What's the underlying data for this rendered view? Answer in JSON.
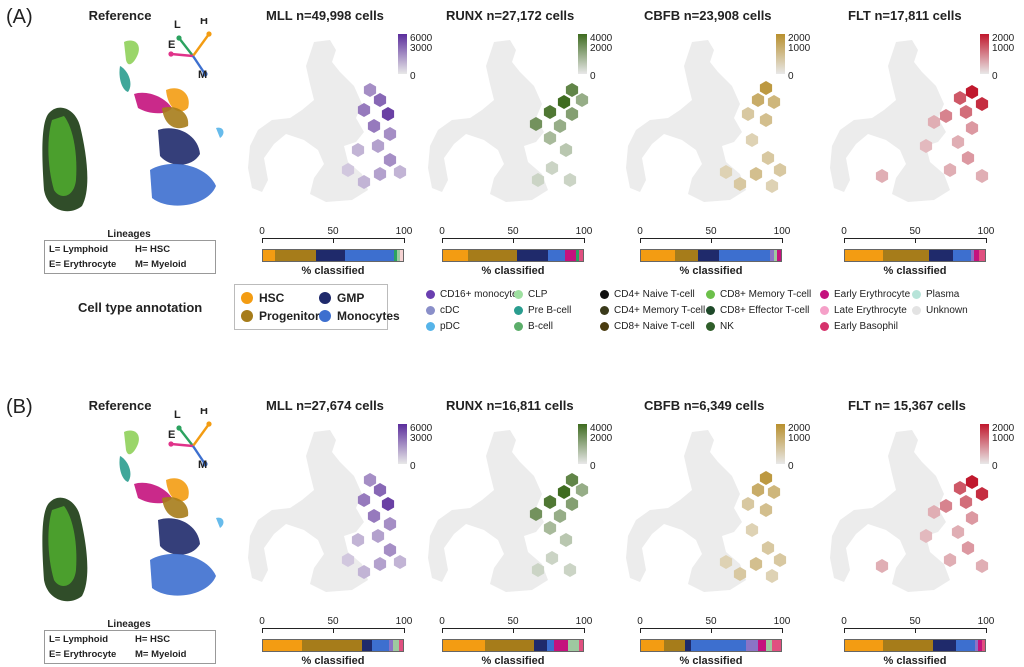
{
  "panels": [
    {
      "label": "(A)",
      "reference_title": "Reference",
      "lineage_title": "Lineages",
      "lineages": [
        "L= Lymphoid",
        "H= HSC",
        "E= Erythrocyte",
        "M= Myeloid"
      ],
      "arrows": [
        "L",
        "H",
        "E",
        "M"
      ],
      "heatmaps": [
        {
          "title": "MLL n=49,998 cells",
          "color": "#5b2d9c",
          "cbar_ticks": [
            "6000",
            "3000",
            "0"
          ],
          "stack": [
            [
              "#f39c12",
              8
            ],
            [
              "#a67c1a",
              27
            ],
            [
              "#1f2a6b",
              19
            ],
            [
              "#3d6fcf",
              32
            ],
            [
              "#2ca25f",
              2
            ],
            [
              "#9ec9a0",
              2
            ],
            [
              "#f6d3d3",
              2
            ]
          ]
        },
        {
          "title": "RUNX n=27,172 cells",
          "color": "#3e6b1f",
          "cbar_ticks": [
            "4000",
            "2000",
            "0"
          ],
          "stack": [
            [
              "#f39c12",
              18
            ],
            [
              "#a67c1a",
              35
            ],
            [
              "#1f2a6b",
              22
            ],
            [
              "#3d6fcf",
              12
            ],
            [
              "#c4127d",
              8
            ],
            [
              "#2ca25f",
              2
            ],
            [
              "#e05080",
              3
            ]
          ]
        },
        {
          "title": "CBFB n=23,908 cells",
          "color": "#b8902e",
          "cbar_ticks": [
            "2000",
            "1000",
            "0"
          ],
          "stack": [
            [
              "#f39c12",
              24
            ],
            [
              "#a67c1a",
              17
            ],
            [
              "#1f2a6b",
              15
            ],
            [
              "#3d6fcf",
              36
            ],
            [
              "#8a74c6",
              3
            ],
            [
              "#9ec9a0",
              2
            ],
            [
              "#c4127d",
              3
            ]
          ]
        },
        {
          "title": "FLT n=17,811 cells",
          "color": "#c0182d",
          "cbar_ticks": [
            "2000",
            "1000",
            "0"
          ],
          "stack": [
            [
              "#f39c12",
              27
            ],
            [
              "#a67c1a",
              33
            ],
            [
              "#1f2a6b",
              17
            ],
            [
              "#3d6fcf",
              13
            ],
            [
              "#8a74c6",
              2
            ],
            [
              "#c4127d",
              4
            ],
            [
              "#e05080",
              4
            ]
          ]
        }
      ]
    },
    {
      "label": "(B)",
      "reference_title": "Reference",
      "lineage_title": "Lineages",
      "lineages": [
        "L= Lymphoid",
        "H= HSC",
        "E= Erythrocyte",
        "M= Myeloid"
      ],
      "arrows": [
        "L",
        "H",
        "E",
        "M"
      ],
      "heatmaps": [
        {
          "title": "MLL n=27,674 cells",
          "color": "#5b2d9c",
          "cbar_ticks": [
            "6000",
            "3000",
            "0"
          ],
          "stack": [
            [
              "#f39c12",
              28
            ],
            [
              "#a67c1a",
              43
            ],
            [
              "#1f2a6b",
              7
            ],
            [
              "#3d6fcf",
              12
            ],
            [
              "#8a74c6",
              3
            ],
            [
              "#9ec9a0",
              4
            ],
            [
              "#e05080",
              3
            ]
          ]
        },
        {
          "title": "RUNX n=16,811 cells",
          "color": "#3e6b1f",
          "cbar_ticks": [
            "4000",
            "2000",
            "0"
          ],
          "stack": [
            [
              "#f39c12",
              30
            ],
            [
              "#a67c1a",
              35
            ],
            [
              "#1f2a6b",
              9
            ],
            [
              "#3d6fcf",
              5
            ],
            [
              "#c4127d",
              10
            ],
            [
              "#9ec9a0",
              8
            ],
            [
              "#e05080",
              3
            ]
          ]
        },
        {
          "title": "CBFB n=6,349 cells",
          "color": "#b8902e",
          "cbar_ticks": [
            "2000",
            "1000",
            "0"
          ],
          "stack": [
            [
              "#f39c12",
              16
            ],
            [
              "#a67c1a",
              14
            ],
            [
              "#1f2a6b",
              4
            ],
            [
              "#3d6fcf",
              38
            ],
            [
              "#8a74c6",
              8
            ],
            [
              "#c4127d",
              6
            ],
            [
              "#9ec9a0",
              4
            ],
            [
              "#e05080",
              6
            ]
          ]
        },
        {
          "title": "FLT n= 15,367 cells",
          "color": "#c0182d",
          "cbar_ticks": [
            "2000",
            "1000",
            "0"
          ],
          "stack": [
            [
              "#f39c12",
              27
            ],
            [
              "#a67c1a",
              36
            ],
            [
              "#1f2a6b",
              16
            ],
            [
              "#3d6fcf",
              14
            ],
            [
              "#8a74c6",
              2
            ],
            [
              "#c4127d",
              3
            ],
            [
              "#e05080",
              2
            ]
          ]
        }
      ]
    }
  ],
  "axis_ticks": [
    "0",
    "50",
    "100"
  ],
  "stack_label": "% classified",
  "legend": {
    "title": "Cell type annotation",
    "main": [
      {
        "label": "HSC",
        "color": "#f39c12"
      },
      {
        "label": "GMP",
        "color": "#1f2a6b"
      },
      {
        "label": "Progenitor",
        "color": "#a67c1a"
      },
      {
        "label": "Monocytes",
        "color": "#3d6fcf"
      }
    ],
    "columns": [
      [
        {
          "label": "CD16+ monocytes",
          "color": "#6a3fb0"
        },
        {
          "label": "cDC",
          "color": "#8a8fc9"
        },
        {
          "label": "pDC",
          "color": "#56b4e9"
        }
      ],
      [
        {
          "label": "CLP",
          "color": "#9ee0a0"
        },
        {
          "label": "Pre B-cell",
          "color": "#2a9d8f"
        },
        {
          "label": "B-cell",
          "color": "#5cae6a"
        }
      ],
      [
        {
          "label": "CD4+ Naive T-cell",
          "color": "#111111"
        },
        {
          "label": "CD4+ Memory T-cell",
          "color": "#3a3a1a"
        },
        {
          "label": "CD8+ Naive T-cell",
          "color": "#4a3c10"
        }
      ],
      [
        {
          "label": "CD8+ Memory T-cell",
          "color": "#6cc04a"
        },
        {
          "label": "CD8+ Effector T-cell",
          "color": "#1f4a2a"
        },
        {
          "label": "NK",
          "color": "#2f5e2a"
        }
      ],
      [
        {
          "label": "Early Erythrocyte",
          "color": "#c4127d"
        },
        {
          "label": "Late Erythrocyte",
          "color": "#f5a0c8"
        },
        {
          "label": "Early Basophil",
          "color": "#d6336c"
        }
      ],
      [
        {
          "label": "Plasma",
          "color": "#b7e4d9"
        },
        {
          "label": "Unknown",
          "color": "#e3e3e3"
        }
      ]
    ]
  }
}
